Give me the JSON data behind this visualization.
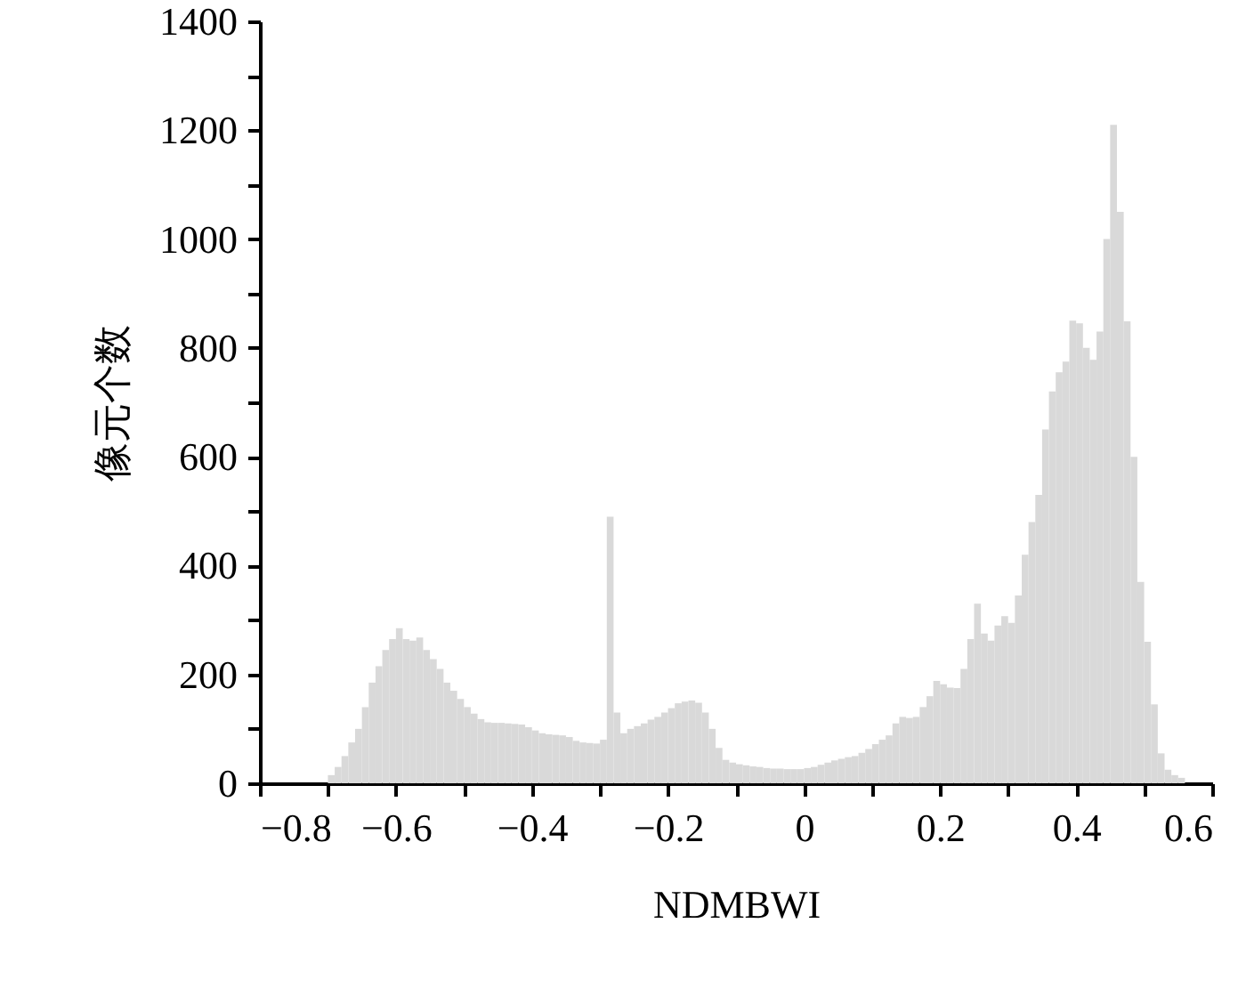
{
  "chart_data": {
    "type": "histogram",
    "xlabel": "NDMBWI",
    "ylabel": "像元个数",
    "color": "#d9d9d9",
    "bins": [
      -0.7,
      -0.69,
      -0.68,
      -0.67,
      -0.66,
      -0.65,
      -0.64,
      -0.63,
      -0.62,
      -0.61,
      -0.6,
      -0.59,
      -0.58,
      -0.57,
      -0.56,
      -0.55,
      -0.54,
      -0.53,
      -0.52,
      -0.51,
      -0.5,
      -0.49,
      -0.48,
      -0.47,
      -0.46,
      -0.45,
      -0.44,
      -0.43,
      -0.42,
      -0.41,
      -0.4,
      -0.39,
      -0.38,
      -0.37,
      -0.36,
      -0.35,
      -0.34,
      -0.33,
      -0.32,
      -0.31,
      -0.3,
      -0.29,
      -0.28,
      -0.27,
      -0.26,
      -0.25,
      -0.24,
      -0.23,
      -0.22,
      -0.21,
      -0.2,
      -0.19,
      -0.18,
      -0.17,
      -0.16,
      -0.15,
      -0.14,
      -0.13,
      -0.12,
      -0.11,
      -0.1,
      -0.09,
      -0.08,
      -0.07,
      -0.06,
      -0.05,
      -0.04,
      -0.03,
      -0.02,
      -0.01,
      0,
      0.01,
      0.02,
      0.03,
      0.04,
      0.05,
      0.06,
      0.07,
      0.08,
      0.09,
      0.1,
      0.11,
      0.12,
      0.13,
      0.14,
      0.15,
      0.16,
      0.17,
      0.18,
      0.19,
      0.2,
      0.21,
      0.22,
      0.23,
      0.24,
      0.25,
      0.26,
      0.27,
      0.28,
      0.29,
      0.3,
      0.31,
      0.32,
      0.33,
      0.34,
      0.35,
      0.36,
      0.37,
      0.38,
      0.39,
      0.4,
      0.41,
      0.42,
      0.43,
      0.44,
      0.45,
      0.46,
      0.47,
      0.48,
      0.49,
      0.5,
      0.51,
      0.52,
      0.53,
      0.54,
      0.55,
      0.56
    ],
    "values": [
      15,
      30,
      50,
      75,
      100,
      140,
      185,
      215,
      245,
      265,
      285,
      265,
      262,
      268,
      245,
      228,
      210,
      185,
      170,
      155,
      140,
      128,
      118,
      112,
      111,
      111,
      110,
      109,
      108,
      103,
      97,
      92,
      90,
      89,
      88,
      85,
      78,
      75,
      74,
      73,
      80,
      490,
      130,
      92,
      100,
      105,
      110,
      117,
      122,
      130,
      138,
      147,
      150,
      152,
      148,
      130,
      100,
      65,
      43,
      38,
      35,
      33,
      31,
      30,
      28,
      27,
      27,
      26,
      26,
      26,
      28,
      30,
      34,
      38,
      42,
      45,
      48,
      50,
      56,
      63,
      72,
      80,
      88,
      110,
      122,
      120,
      122,
      140,
      160,
      188,
      182,
      176,
      175,
      210,
      265,
      330,
      275,
      262,
      290,
      307,
      295,
      345,
      420,
      480,
      530,
      650,
      720,
      755,
      775,
      850,
      845,
      800,
      778,
      830,
      1000,
      1210,
      1050,
      849,
      600,
      370,
      260,
      145,
      55,
      25,
      15,
      10
    ],
    "xlim": [
      -0.8,
      0.6
    ],
    "xticks": [
      {
        "value": -0.8,
        "label": "−0.8"
      },
      {
        "value": -0.7,
        "label": null
      },
      {
        "value": -0.6,
        "label": "−0.6"
      },
      {
        "value": -0.5,
        "label": null
      },
      {
        "value": -0.4,
        "label": "−0.4"
      },
      {
        "value": -0.3,
        "label": null
      },
      {
        "value": -0.2,
        "label": "−0.2"
      },
      {
        "value": -0.1,
        "label": null
      },
      0,
      {
        "value": 0.1,
        "label": null
      },
      {
        "value": 0.2,
        "label": "0.2"
      },
      {
        "value": 0.3,
        "label": null
      },
      {
        "value": 0.4,
        "label": "0.4"
      },
      {
        "value": 0.5,
        "label": null
      },
      {
        "value": 0.6,
        "label": "0.6"
      }
    ],
    "ylim": [
      0,
      1400
    ],
    "yticks": [
      0,
      {
        "value": 100,
        "label": null
      },
      200,
      {
        "value": 300,
        "label": null
      },
      400,
      {
        "value": 500,
        "label": null
      },
      600,
      {
        "value": 700,
        "label": null
      },
      800,
      {
        "value": 900,
        "label": null
      },
      1000,
      {
        "value": 1100,
        "label": null
      },
      1200,
      {
        "value": 1300,
        "label": null
      },
      1400
    ],
    "grid": false
  }
}
